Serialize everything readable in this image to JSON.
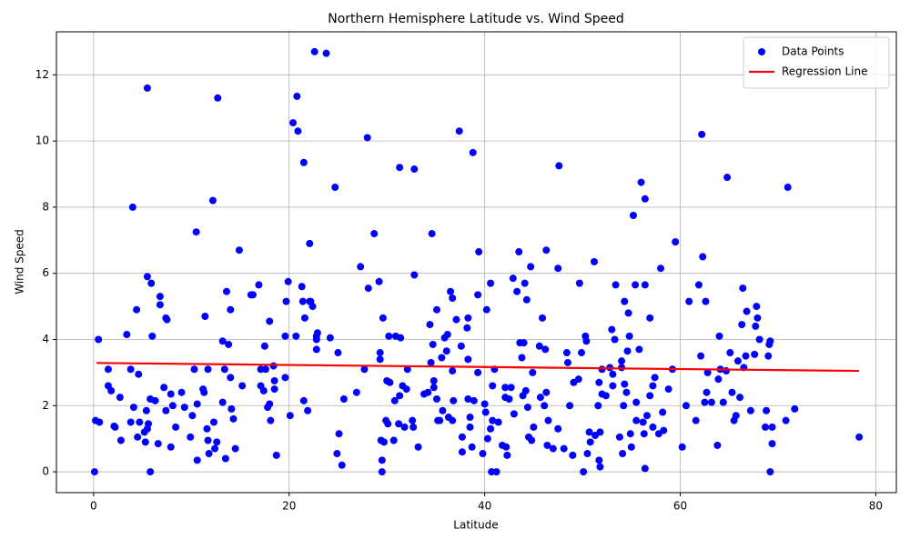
{
  "chart_data": {
    "type": "scatter",
    "title": "Northern Hemisphere Latitude vs. Wind Speed",
    "x_label": "Latitude",
    "y_label": "Wind Speed",
    "xlim": [
      -3.8,
      82.1
    ],
    "ylim": [
      -0.63,
      13.3
    ],
    "xticks": [
      0,
      20,
      40,
      60,
      80
    ],
    "yticks": [
      0,
      2,
      4,
      6,
      8,
      10,
      12
    ],
    "grid": true,
    "legend": "upper right",
    "series": [
      {
        "name": "Data Points",
        "color": "#0000ff",
        "kind": "scatter",
        "x": [
          0.2,
          0.5,
          0.1,
          0.6,
          1.5,
          1.5,
          1.8,
          2.2,
          2.1,
          2.7,
          2.8,
          3.4,
          3.8,
          3.8,
          4.0,
          4.1,
          4.4,
          4.6,
          4.5,
          4.7,
          5.2,
          5.3,
          5.5,
          5.4,
          5.5,
          5.8,
          5.6,
          5.5,
          5.8,
          5.9,
          6.0,
          6.3,
          6.6,
          6.8,
          6.8,
          7.2,
          7.4,
          7.5,
          7.4,
          7.9,
          7.9,
          8.1,
          8.4,
          9.0,
          9.3,
          9.9,
          10.1,
          10.3,
          10.5,
          10.6,
          10.6,
          11.2,
          11.3,
          11.4,
          11.6,
          11.7,
          11.7,
          11.8,
          12.2,
          12.3,
          12.4,
          12.6,
          12.7,
          13.2,
          13.2,
          13.4,
          13.5,
          13.6,
          13.8,
          14.0,
          14.0,
          14.1,
          14.3,
          14.5,
          14.9,
          15.2,
          16.1,
          16.3,
          16.9,
          17.1,
          17.1,
          17.4,
          17.5,
          17.6,
          17.8,
          18.0,
          18.0,
          18.1,
          18.4,
          18.5,
          18.5,
          18.7,
          19.6,
          19.6,
          19.7,
          19.9,
          20.1,
          20.4,
          20.7,
          20.8,
          20.9,
          21.3,
          21.4,
          21.5,
          21.5,
          21.6,
          21.9,
          22.1,
          22.1,
          22.2,
          22.4,
          22.6,
          22.8,
          22.8,
          22.8,
          22.9,
          23.8,
          24.2,
          24.7,
          24.9,
          25.0,
          25.1,
          25.4,
          25.6,
          26.9,
          27.3,
          27.7,
          28.0,
          28.1,
          28.7,
          29.2,
          29.3,
          29.3,
          29.4,
          29.5,
          29.5,
          29.6,
          29.7,
          29.9,
          30.0,
          30.1,
          30.2,
          30.3,
          30.7,
          30.8,
          30.9,
          31.2,
          31.3,
          31.3,
          31.4,
          31.6,
          31.8,
          32.0,
          32.1,
          32.6,
          32.7,
          32.8,
          32.8,
          33.2,
          33.8,
          34.2,
          34.4,
          34.5,
          34.6,
          34.7,
          34.8,
          34.8,
          35.1,
          35.1,
          35.2,
          35.4,
          35.6,
          35.7,
          35.9,
          36.1,
          36.2,
          36.3,
          36.5,
          36.7,
          36.7,
          36.8,
          36.7,
          37.1,
          37.4,
          37.6,
          37.7,
          37.7,
          38.2,
          38.3,
          38.3,
          38.3,
          38.5,
          38.5,
          38.7,
          38.8,
          38.9,
          39.3,
          39.3,
          39.4,
          39.8,
          40.0,
          40.1,
          40.2,
          40.3,
          40.6,
          40.6,
          40.7,
          40.8,
          40.8,
          41.0,
          41.2,
          41.4,
          41.8,
          42.1,
          42.1,
          42.2,
          42.3,
          42.5,
          42.7,
          42.9,
          43.0,
          43.3,
          43.5,
          43.6,
          43.8,
          43.9,
          44.0,
          44.1,
          44.2,
          44.3,
          44.4,
          44.5,
          44.7,
          44.8,
          44.9,
          45.0,
          45.6,
          45.7,
          45.9,
          46.1,
          46.2,
          46.3,
          46.3,
          46.4,
          46.5,
          47.0,
          47.5,
          47.6,
          47.5,
          48.1,
          48.4,
          48.5,
          48.7,
          49.0,
          49.1,
          49.6,
          49.7,
          49.9,
          50.1,
          50.3,
          50.4,
          50.5,
          50.7,
          50.8,
          51.2,
          51.3,
          51.6,
          51.7,
          51.7,
          51.8,
          51.8,
          52.0,
          52.0,
          52.4,
          52.8,
          53.0,
          53.1,
          53.1,
          53.3,
          53.4,
          53.8,
          54.0,
          54.0,
          54.1,
          54.2,
          54.3,
          54.3,
          54.5,
          54.6,
          54.7,
          54.8,
          54.9,
          55.0,
          55.2,
          55.4,
          55.5,
          55.5,
          55.8,
          56.0,
          56.2,
          56.3,
          56.4,
          56.4,
          56.4,
          56.6,
          56.9,
          56.9,
          57.2,
          57.2,
          57.4,
          57.8,
          58.0,
          58.2,
          58.3,
          58.8,
          59.2,
          59.5,
          60.2,
          60.6,
          60.9,
          61.6,
          61.9,
          62.1,
          62.2,
          62.3,
          62.5,
          62.6,
          62.7,
          62.8,
          63.2,
          63.8,
          63.9,
          64.0,
          64.1,
          64.4,
          64.7,
          64.8,
          65.1,
          65.3,
          65.5,
          65.7,
          65.9,
          66.1,
          66.3,
          66.4,
          66.5,
          66.7,
          66.8,
          67.2,
          67.6,
          67.7,
          67.8,
          67.9,
          68.1,
          68.7,
          68.8,
          69.0,
          69.1,
          69.2,
          69.2,
          69.4,
          69.4,
          70.8,
          71.0,
          71.7,
          78.3
        ],
        "values": [
          1.55,
          4.0,
          0,
          1.5,
          3.1,
          2.6,
          2.45,
          1.35,
          1.38,
          2.25,
          0.95,
          4.15,
          3.1,
          1.5,
          8.0,
          1.95,
          4.9,
          2.95,
          1.05,
          1.5,
          1.2,
          0.9,
          11.6,
          1.85,
          5.9,
          0,
          1.45,
          1.3,
          2.2,
          5.7,
          4.1,
          2.15,
          0.85,
          5.3,
          5.05,
          2.55,
          4.65,
          4.6,
          1.85,
          2.35,
          0.75,
          2.0,
          1.35,
          2.4,
          1.95,
          1.05,
          1.7,
          3.1,
          7.25,
          2.05,
          0.35,
          2.5,
          2.4,
          4.7,
          1.3,
          3.1,
          0.95,
          0.55,
          8.2,
          1.5,
          0.7,
          0.9,
          11.3,
          3.95,
          2.1,
          3.1,
          0.4,
          5.45,
          3.85,
          4.9,
          2.85,
          1.9,
          1.6,
          0.7,
          6.7,
          2.6,
          5.35,
          5.35,
          5.65,
          2.6,
          3.1,
          2.45,
          3.8,
          3.1,
          1.95,
          2.05,
          4.55,
          1.55,
          3.2,
          2.75,
          2.5,
          0.5,
          4.1,
          2.85,
          5.15,
          5.75,
          1.7,
          10.55,
          4.1,
          11.35,
          10.3,
          5.6,
          5.15,
          2.15,
          9.35,
          4.65,
          1.85,
          6.9,
          5.15,
          5.15,
          5.0,
          12.7,
          4.0,
          4.1,
          3.7,
          4.2,
          12.65,
          4.05,
          8.6,
          0.55,
          3.6,
          1.15,
          0.2,
          2.2,
          2.4,
          6.2,
          3.1,
          10.1,
          5.55,
          7.2,
          5.75,
          3.4,
          3.6,
          0.95,
          0.35,
          0,
          4.65,
          0.9,
          1.55,
          2.75,
          1.45,
          4.1,
          2.7,
          0.95,
          2.15,
          4.1,
          1.45,
          9.2,
          2.3,
          4.05,
          2.6,
          1.35,
          2.5,
          3.1,
          1.55,
          1.35,
          9.15,
          5.95,
          0.75,
          2.35,
          2.4,
          4.45,
          3.3,
          7.2,
          3.85,
          2.55,
          2.75,
          2.2,
          4.9,
          1.55,
          1.55,
          3.45,
          1.85,
          4.05,
          3.65,
          4.15,
          1.65,
          5.45,
          5.25,
          3.05,
          2.15,
          1.55,
          4.6,
          10.3,
          3.8,
          1.05,
          0.6,
          4.35,
          4.65,
          3.4,
          2.2,
          1.65,
          1.35,
          0.75,
          9.65,
          2.15,
          5.35,
          3.0,
          6.65,
          0.55,
          2.05,
          1.8,
          4.9,
          1.0,
          5.7,
          1.3,
          0,
          2.6,
          1.55,
          3.1,
          0,
          1.5,
          0.8,
          2.55,
          2.25,
          0.75,
          0.5,
          2.2,
          2.55,
          5.85,
          1.75,
          5.45,
          6.65,
          3.9,
          3.45,
          2.3,
          3.9,
          5.7,
          2.45,
          5.2,
          1.95,
          1.05,
          6.2,
          0.95,
          3.0,
          1.35,
          3.8,
          2.25,
          4.65,
          2.0,
          3.7,
          2.4,
          6.7,
          0.8,
          1.55,
          0.7,
          6.15,
          9.25,
          1.3,
          0.7,
          3.6,
          3.3,
          2.0,
          0.5,
          2.7,
          2.8,
          5.7,
          3.6,
          0,
          4.1,
          3.95,
          0.55,
          1.2,
          0.9,
          6.35,
          1.1,
          2.0,
          2.7,
          0.35,
          1.2,
          0.15,
          2.35,
          3.1,
          2.3,
          3.15,
          4.3,
          2.95,
          2.6,
          4.0,
          5.65,
          1.05,
          3.15,
          3.35,
          0.55,
          2.0,
          5.15,
          2.65,
          2.4,
          3.65,
          4.8,
          4.1,
          1.15,
          0.75,
          7.75,
          5.65,
          2.1,
          1.55,
          3.7,
          8.75,
          1.5,
          1.15,
          8.25,
          5.65,
          0.1,
          1.7,
          2.3,
          4.65,
          2.6,
          1.35,
          2.85,
          1.15,
          6.15,
          1.8,
          1.25,
          2.5,
          3.1,
          6.95,
          0.75,
          2.0,
          5.15,
          1.55,
          5.65,
          3.5,
          10.2,
          6.5,
          2.1,
          5.15,
          2.4,
          3.0,
          2.1,
          0.8,
          2.8,
          4.1,
          3.1,
          2.1,
          3.05,
          8.9,
          3.6,
          2.4,
          1.55,
          1.7,
          3.35,
          2.25,
          4.45,
          5.55,
          3.15,
          3.5,
          4.85,
          1.85,
          3.55,
          4.4,
          5.0,
          4.65,
          4.0,
          1.35,
          1.85,
          3.5,
          3.85,
          0,
          3.95,
          0.85,
          1.35,
          1.55,
          8.6,
          1.9,
          1.05
        ]
      },
      {
        "name": "Regression Line",
        "color": "#ff0000",
        "kind": "line",
        "x": [
          0.3,
          78.3
        ],
        "values": [
          3.29,
          3.05
        ]
      }
    ]
  }
}
